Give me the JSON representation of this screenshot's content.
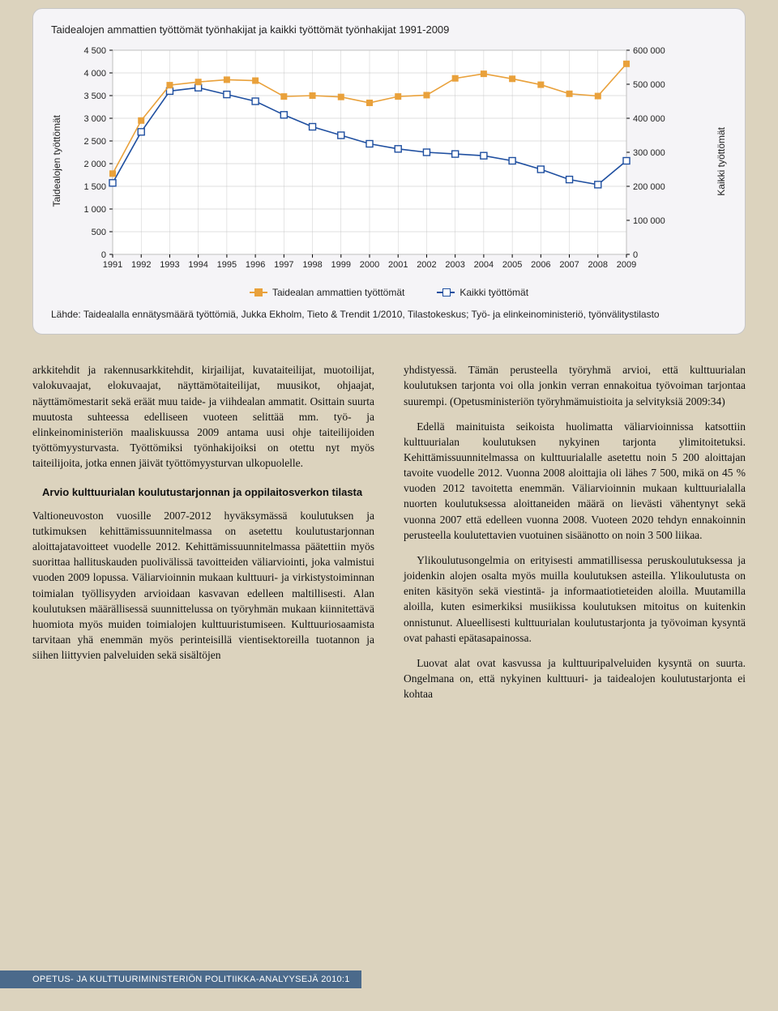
{
  "chart": {
    "title": "Taidealojen ammattien työttömät työnhakijat ja kaikki työttömät työnhakijat 1991-2009",
    "ylabel_left": "Taidealojen työttömät",
    "ylabel_right": "Kaikki työttömät",
    "years": [
      1991,
      1992,
      1993,
      1994,
      1995,
      1996,
      1997,
      1998,
      1999,
      2000,
      2001,
      2002,
      2003,
      2004,
      2005,
      2006,
      2007,
      2008,
      2009
    ],
    "left_ticks": [
      0,
      500,
      1000,
      1500,
      2000,
      2500,
      3000,
      3500,
      4000,
      4500
    ],
    "right_ticks": [
      0,
      100000,
      200000,
      300000,
      400000,
      500000,
      600000
    ],
    "right_tick_labels": [
      "0",
      "100 000",
      "200 000",
      "300 000",
      "400 000",
      "500 000",
      "600 000"
    ],
    "series": {
      "taide": {
        "label": "Taidealan ammattien työttömät",
        "color": "#e9a13b",
        "marker": "square",
        "values": [
          1780,
          2950,
          3730,
          3800,
          3850,
          3830,
          3480,
          3500,
          3470,
          3340,
          3480,
          3510,
          3880,
          3980,
          3870,
          3740,
          3540,
          3490,
          4200
        ]
      },
      "kaikki": {
        "label": "Kaikki työttömät",
        "color": "#1f4fa0",
        "marker": "square-open",
        "values": [
          210000,
          360000,
          480000,
          490000,
          470000,
          450000,
          410000,
          375000,
          350000,
          325000,
          310000,
          300000,
          295000,
          290000,
          275000,
          250000,
          220000,
          205000,
          275000
        ]
      }
    },
    "plot_bg": "#ffffff",
    "grid_color": "#bfbfbf",
    "source_text": "Lähde: Taidealalla ennätysmäärä työttömiä, Jukka Ekholm, Tieto & Trendit 1/2010, Tilastokeskus; Työ- ja elinkeinoministeriö, työnvälitystilasto"
  },
  "left_col": {
    "p1": "arkkitehdit ja rakennusarkkitehdit, kirjailijat, kuvataiteilijat, muotoilijat, valokuvaajat, elokuvaajat, näyttämötaiteilijat, muusikot, ohjaajat, näyttämömestarit sekä eräät muu taide- ja viihdealan ammatit. Osittain suurta muutosta suhteessa edelliseen vuoteen selittää mm. työ- ja elinkeinoministeriön maaliskuussa 2009 antama uusi ohje taiteilijoiden työttömyysturvasta. Työttömiksi työnhakijoiksi on otettu nyt myös taiteilijoita, jotka ennen jäivät työttömyysturvan ulkopuolelle.",
    "sub": "Arvio kulttuurialan koulutustarjonnan ja oppilaitosverkon tilasta",
    "p2": "Valtioneuvoston vuosille 2007-2012 hyväksymässä koulutuksen ja tutkimuksen kehittämissuunnitelmassa on asetettu koulutustarjonnan aloittajatavoitteet vuodelle 2012. Kehittämissuunnitelmassa päätettiin myös suorittaa hallituskauden puolivälissä tavoitteiden väliarviointi, joka valmistui vuoden 2009 lopussa. Väliarvioinnin mukaan kulttuuri- ja virkistystoiminnan toimialan työllisyyden arvioidaan kasvavan edelleen maltillisesti. Alan koulutuksen määrällisessä suunnittelussa on työryhmän mukaan kiinnitettävä huomiota myös muiden toimialojen kulttuuristumiseen. Kulttuuriosaamista tarvitaan yhä enemmän myös perinteisillä vientisektoreilla tuotannon ja siihen liittyvien palveluiden sekä sisältöjen"
  },
  "right_col": {
    "p1": "yhdistyessä. Tämän perusteella työryhmä arvioi, että kulttuurialan koulutuksen tarjonta voi olla jonkin verran ennakoitua työvoiman tarjontaa suurempi. (Opetusministeriön työryhmämuistioita ja selvityksiä 2009:34)",
    "p2": "Edellä mainituista seikoista huolimatta väliarvioinnissa katsottiin kulttuurialan koulutuksen nykyinen tarjonta ylimitoitetuksi. Kehittämissuunnitelmassa on kulttuurialalle asetettu noin 5 200 aloittajan tavoite vuodelle 2012. Vuonna 2008 aloittajia oli lähes 7 500, mikä on 45 % vuoden 2012 tavoitetta enemmän. Väliarvioinnin mukaan kulttuurialalla nuorten koulutuksessa aloittaneiden määrä on lievästi vähentynyt sekä vuonna 2007 että edelleen vuonna 2008. Vuoteen 2020 tehdyn ennakoinnin perusteella koulutettavien vuotuinen sisäänotto on noin 3 500 liikaa.",
    "p3": "Ylikoulutusongelmia on erityisesti ammatillisessa peruskoulutuksessa ja joidenkin alojen osalta myös muilla koulutuksen asteilla. Ylikoulutusta on eniten käsityön sekä viestintä- ja informaatiotieteiden aloilla. Muutamilla aloilla, kuten esimerkiksi musiikissa koulutuksen mitoitus on kuitenkin onnistunut. Alueellisesti kulttuurialan koulutustarjonta ja työvoiman kysyntä ovat pahasti epätasapainossa.",
    "p4": "Luovat alat ovat kasvussa ja kulttuuripalveluiden kysyntä on suurta. Ongelmana on, että nykyinen kulttuuri- ja taidealojen koulutustarjonta ei kohtaa"
  },
  "footer": "OPETUS- JA KULTTUURIMINISTERIÖN POLITIIKKA-ANALYYSEJÄ 2010:1"
}
